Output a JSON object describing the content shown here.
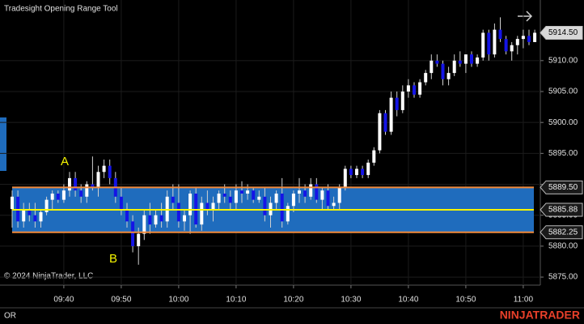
{
  "chart_data": {
    "type": "candlestick",
    "title": "Tradesight Opening Range Tool",
    "copyright": "© 2024 NinjaTrader, LLC",
    "indicator_label": "OR",
    "logo": "NINJATRADER",
    "annotations": [
      "A",
      "B"
    ],
    "up_color": "#ffffff",
    "down_color": "#1414e6",
    "wick_color": "#d0d0d0",
    "grid": true,
    "ylim": [
      5873.7,
      5919.8
    ],
    "yticks": [
      {
        "value": 5875,
        "label": "5875.00"
      },
      {
        "value": 5880,
        "label": "5880.00"
      },
      {
        "value": 5885,
        "label": "5885.00"
      },
      {
        "value": 5890,
        "label": "5890.00"
      },
      {
        "value": 5895,
        "label": "5895.00"
      },
      {
        "value": 5900,
        "label": "5900.00"
      },
      {
        "value": 5905,
        "label": "5905.00"
      },
      {
        "value": 5910,
        "label": "5910.00"
      }
    ],
    "last_price": {
      "value": 5914.5,
      "label": "5914.50"
    },
    "opening_range": {
      "color": "#1f6cbd",
      "border_color": "#f08a3c",
      "mid_color": "#f5f500",
      "high": {
        "value": 5889.5,
        "label": "5889.50"
      },
      "mid": {
        "value": 5885.88,
        "label": "5885.88"
      },
      "low": {
        "value": 5882.25,
        "label": "5882.25"
      }
    },
    "categories": [
      null,
      null,
      null,
      null,
      null,
      null,
      null,
      null,
      null,
      "09:40",
      null,
      null,
      null,
      null,
      null,
      null,
      null,
      null,
      null,
      "09:50",
      null,
      null,
      null,
      null,
      null,
      null,
      null,
      null,
      null,
      "10:00",
      null,
      null,
      null,
      null,
      null,
      null,
      null,
      null,
      null,
      "10:10",
      null,
      null,
      null,
      null,
      null,
      null,
      null,
      null,
      null,
      "10:20",
      null,
      null,
      null,
      null,
      null,
      null,
      null,
      null,
      null,
      "10:30",
      null,
      null,
      null,
      null,
      null,
      null,
      null,
      null,
      null,
      "10:40",
      null,
      null,
      null,
      null,
      null,
      null,
      null,
      null,
      null,
      "10:50",
      null,
      null,
      null,
      null,
      null,
      null,
      null,
      null,
      null,
      "11:00",
      null,
      null
    ],
    "candles": [
      [
        5886,
        5889,
        5883,
        5888
      ],
      [
        5888,
        5889,
        5883,
        5884
      ],
      [
        5884,
        5887,
        5883,
        5886
      ],
      [
        5886,
        5887,
        5884,
        5885
      ],
      [
        5885,
        5887,
        5883,
        5884
      ],
      [
        5884,
        5886,
        5883,
        5885.5
      ],
      [
        5885.5,
        5888,
        5885,
        5887.5
      ],
      [
        5887.5,
        5889,
        5886,
        5888.5
      ],
      [
        5888.5,
        5889,
        5887,
        5887.5
      ],
      [
        5887.5,
        5890,
        5887,
        5889
      ],
      [
        5889,
        5892,
        5888,
        5891
      ],
      [
        5891,
        5892,
        5888,
        5889
      ],
      [
        5889,
        5890,
        5887,
        5888
      ],
      [
        5888,
        5890.5,
        5887,
        5890
      ],
      [
        5890,
        5894.5,
        5889,
        5889.5
      ],
      [
        5889.5,
        5893,
        5888,
        5892
      ],
      [
        5892,
        5894,
        5891,
        5893
      ],
      [
        5893,
        5894,
        5890,
        5891
      ],
      [
        5891,
        5892,
        5887,
        5888
      ],
      [
        5888,
        5889.5,
        5885,
        5886
      ],
      [
        5886,
        5887,
        5883,
        5884
      ],
      [
        5884,
        5885,
        5879,
        5880
      ],
      [
        5880,
        5883,
        5877,
        5882
      ],
      [
        5882,
        5886,
        5881,
        5885
      ],
      [
        5885,
        5887,
        5882,
        5883.5
      ],
      [
        5883.5,
        5886,
        5883,
        5885
      ],
      [
        5885,
        5887,
        5883,
        5884
      ],
      [
        5884,
        5889,
        5883,
        5888
      ],
      [
        5888,
        5890,
        5886,
        5887
      ],
      [
        5887,
        5890,
        5883,
        5884
      ],
      [
        5884,
        5886,
        5882.5,
        5885
      ],
      [
        5885,
        5889,
        5882,
        5888.5
      ],
      [
        5888.5,
        5889.5,
        5883,
        5883.5
      ],
      [
        5883.5,
        5888,
        5882.5,
        5887
      ],
      [
        5887,
        5889,
        5885,
        5886
      ],
      [
        5886,
        5888,
        5884,
        5887
      ],
      [
        5887,
        5889,
        5886,
        5888.5
      ],
      [
        5888.5,
        5890,
        5887,
        5888
      ],
      [
        5888,
        5889,
        5886,
        5887
      ],
      [
        5887,
        5890,
        5886,
        5889
      ],
      [
        5889,
        5890.5,
        5887,
        5888.5
      ],
      [
        5888.5,
        5890,
        5887.5,
        5889
      ],
      [
        5889,
        5889.5,
        5887,
        5887.5
      ],
      [
        5887.5,
        5889,
        5887,
        5888
      ],
      [
        5888,
        5889.5,
        5884,
        5885
      ],
      [
        5885,
        5888,
        5883,
        5887
      ],
      [
        5887,
        5889,
        5886,
        5888.5
      ],
      [
        5888.5,
        5891,
        5883,
        5884
      ],
      [
        5884,
        5887,
        5883.5,
        5886.5
      ],
      [
        5886.5,
        5889,
        5885.5,
        5888.5
      ],
      [
        5888.5,
        5891,
        5887,
        5889
      ],
      [
        5889,
        5890,
        5887,
        5888
      ],
      [
        5888,
        5891,
        5887.5,
        5890
      ],
      [
        5890,
        5891,
        5887,
        5887.5
      ],
      [
        5887.5,
        5889.5,
        5886,
        5889
      ],
      [
        5889,
        5890,
        5886,
        5886.5
      ],
      [
        5886.5,
        5888,
        5886,
        5887
      ],
      [
        5887,
        5890,
        5886,
        5889.5
      ],
      [
        5889.5,
        5893,
        5889,
        5892.5
      ],
      [
        5892.5,
        5893,
        5891,
        5891.5
      ],
      [
        5891.5,
        5893,
        5891,
        5892.5
      ],
      [
        5892.5,
        5893,
        5891,
        5891.5
      ],
      [
        5891.5,
        5894,
        5891,
        5893.5
      ],
      [
        5893.5,
        5896,
        5893,
        5895.5
      ],
      [
        5895.5,
        5902,
        5895,
        5901.5
      ],
      [
        5901.5,
        5902,
        5898,
        5898.5
      ],
      [
        5898.5,
        5905,
        5898,
        5904
      ],
      [
        5904,
        5905,
        5901,
        5902
      ],
      [
        5902,
        5906,
        5901.5,
        5905
      ],
      [
        5905,
        5907,
        5904,
        5906
      ],
      [
        5906,
        5906.5,
        5904,
        5904.5
      ],
      [
        5904.5,
        5907,
        5904,
        5906.5
      ],
      [
        5906.5,
        5908.5,
        5906,
        5908
      ],
      [
        5908,
        5911,
        5907,
        5910
      ],
      [
        5910,
        5911,
        5909,
        5909.5
      ],
      [
        5909.5,
        5910,
        5906,
        5907
      ],
      [
        5907,
        5909,
        5906,
        5908
      ],
      [
        5908,
        5911,
        5907.5,
        5910
      ],
      [
        5910,
        5911.5,
        5909,
        5909.5
      ],
      [
        5909.5,
        5911,
        5908,
        5911
      ],
      [
        5911,
        5911.5,
        5909,
        5909.5
      ],
      [
        5909.5,
        5911,
        5909,
        5910.5
      ],
      [
        5910.5,
        5915,
        5910,
        5914.5
      ],
      [
        5914.5,
        5915,
        5910,
        5911
      ],
      [
        5911,
        5916,
        5910.5,
        5915
      ],
      [
        5915,
        5917,
        5913,
        5913.5
      ],
      [
        5913.5,
        5914,
        5911,
        5911.5
      ],
      [
        5911.5,
        5913,
        5910,
        5912.5
      ],
      [
        5912.5,
        5914,
        5911,
        5913.5
      ],
      [
        5913.5,
        5915,
        5912,
        5914
      ],
      [
        5914,
        5915,
        5912.5,
        5913
      ],
      [
        5913,
        5915,
        5913,
        5914.5
      ]
    ]
  }
}
